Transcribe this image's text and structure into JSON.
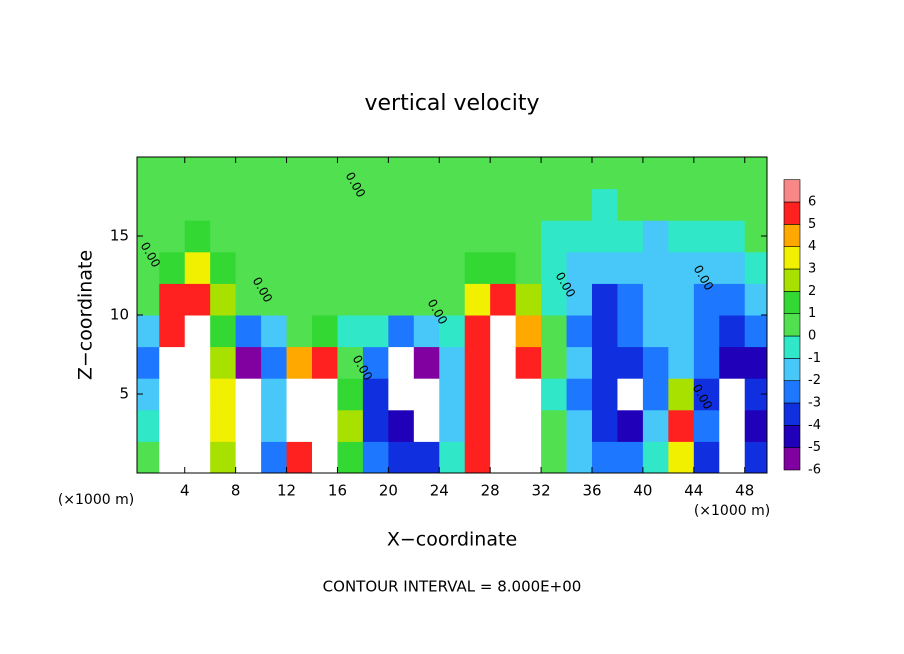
{
  "chart_data": {
    "type": "heatmap",
    "title": "vertical velocity",
    "x_label": "X−coordinate",
    "y_label": "Z−coordinate",
    "x_unit_label": "(×1000 m)",
    "y_unit_label": "(×1000 m)",
    "note": "CONTOUR INTERVAL = 8.000E+00",
    "contour_label": "0.00",
    "x": [
      1,
      3,
      5,
      7,
      9,
      11,
      13,
      15,
      17,
      19,
      21,
      23,
      25,
      27,
      29,
      31,
      33,
      35,
      37,
      39,
      41,
      43,
      45,
      47,
      49
    ],
    "y": [
      1,
      3,
      5,
      7,
      9,
      11,
      13,
      15,
      17,
      19
    ],
    "z": [
      [
        0,
        8,
        10,
        2,
        -7,
        -3,
        6,
        9,
        1,
        -3,
        -4,
        -4,
        -1,
        5,
        10,
        8,
        0,
        -2,
        -3,
        -3,
        -1,
        3,
        -4,
        -7,
        -4
      ],
      [
        -1,
        9,
        12,
        3,
        -8,
        -2,
        7,
        10,
        2,
        -4,
        -5,
        -7,
        -2,
        6,
        12,
        9,
        0,
        -2,
        -4,
        -5,
        -2,
        5,
        -3,
        -8,
        -5
      ],
      [
        -2,
        9,
        12,
        3,
        -8,
        -2,
        7,
        9,
        1,
        -4,
        -8,
        -8,
        -2,
        6,
        12,
        8,
        -1,
        -3,
        -4,
        -8,
        -3,
        2,
        -4,
        -7,
        -4
      ],
      [
        -3,
        7,
        10,
        2,
        -6,
        -3,
        4,
        6,
        0,
        -3,
        -7,
        -6,
        -2,
        5,
        10,
        6,
        0,
        -2,
        -4,
        -4,
        -3,
        -2,
        -3,
        -5,
        -5
      ],
      [
        -2,
        6,
        7,
        1,
        -3,
        -2,
        0,
        1,
        -1,
        -1,
        -3,
        -2,
        -1,
        6,
        7,
        4,
        0,
        -3,
        -4,
        -3,
        -2,
        -2,
        -3,
        -4,
        -3
      ],
      [
        0,
        5,
        6,
        2,
        0,
        0,
        0,
        0,
        0,
        0,
        0,
        0,
        0,
        3,
        5,
        2,
        -1,
        -2,
        -4,
        -3,
        -2,
        -2,
        -3,
        -3,
        -2
      ],
      [
        0,
        1,
        3,
        1,
        0,
        0,
        0,
        0,
        0,
        0,
        0,
        0,
        0,
        1,
        1,
        0,
        -1,
        -2,
        -2,
        -2,
        -2,
        -2,
        -2,
        -2,
        -1
      ],
      [
        0,
        0,
        1,
        0,
        0,
        0,
        0,
        0,
        0,
        0,
        0,
        0,
        0,
        0,
        0,
        0,
        -1,
        -1,
        -1,
        -1,
        -2,
        -1,
        -1,
        -1,
        0
      ],
      [
        0,
        0,
        0,
        0,
        0,
        0,
        0,
        0,
        0,
        0,
        0,
        0,
        0,
        0,
        0,
        0,
        0,
        0,
        -1,
        0,
        0,
        0,
        0,
        0,
        0
      ],
      [
        0,
        0,
        0,
        0,
        0,
        0,
        0,
        0,
        0,
        0,
        0,
        0,
        0,
        0,
        0,
        0,
        0,
        0,
        0,
        0,
        0,
        0,
        0,
        0,
        0
      ]
    ],
    "xlim": [
      0.25,
      49.75
    ],
    "ylim": [
      0,
      20
    ],
    "xticks": [
      4,
      8,
      12,
      16,
      20,
      24,
      28,
      32,
      36,
      40,
      44,
      48
    ],
    "yticks": [
      5,
      10,
      15
    ],
    "colorbar": {
      "levels": [
        -6,
        -5,
        -4,
        -3,
        -2,
        -1,
        0,
        1,
        2,
        3,
        4,
        5,
        6
      ],
      "colors": [
        "#8000a0",
        "#2000b8",
        "#1030e0",
        "#1e78ff",
        "#48c8f8",
        "#30e8c8",
        "#50e050",
        "#33d833",
        "#a8e000",
        "#f0f000",
        "#ffa800",
        "#ff2020",
        "#f88888"
      ]
    }
  }
}
